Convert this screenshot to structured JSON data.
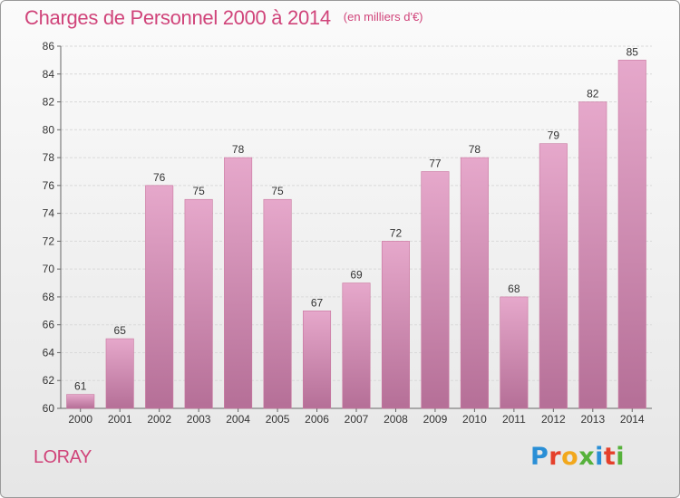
{
  "chart_data": {
    "type": "bar",
    "title": "Charges de Personnel 2000 à 2014",
    "subtitle": "(en milliers d'€)",
    "categories": [
      "2000",
      "2001",
      "2002",
      "2003",
      "2004",
      "2005",
      "2006",
      "2007",
      "2008",
      "2009",
      "2010",
      "2011",
      "2012",
      "2013",
      "2014"
    ],
    "values": [
      61,
      65,
      76,
      75,
      78,
      75,
      67,
      69,
      72,
      77,
      78,
      68,
      79,
      82,
      85
    ],
    "ylim": [
      60,
      86
    ],
    "yticks": [
      60,
      62,
      64,
      66,
      68,
      70,
      72,
      74,
      76,
      78,
      80,
      82,
      84,
      86
    ],
    "xlabel": "",
    "ylabel": "",
    "grid": true,
    "bar_color": "#d98cb4"
  },
  "footer": {
    "place": "LORAY",
    "brand_letters": [
      {
        "ch": "P",
        "color": "#2a8fd6"
      },
      {
        "ch": "r",
        "color": "#e5402b"
      },
      {
        "ch": "o",
        "color": "#f2a81d"
      },
      {
        "ch": "x",
        "color": "#56b13b"
      },
      {
        "ch": "i",
        "color": "#2a8fd6"
      },
      {
        "ch": "t",
        "color": "#e5402b"
      },
      {
        "ch": "i",
        "color": "#56b13b"
      }
    ]
  }
}
